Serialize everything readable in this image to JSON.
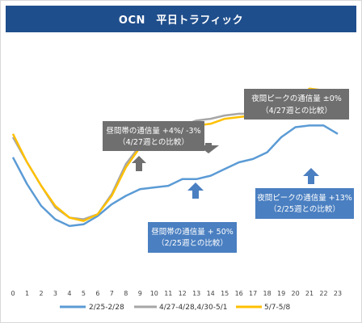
{
  "chart_data": {
    "type": "line",
    "title": "OCN　平日トラフィック",
    "x": [
      0,
      1,
      2,
      3,
      4,
      5,
      6,
      7,
      8,
      9,
      10,
      11,
      12,
      13,
      14,
      15,
      16,
      17,
      18,
      19,
      20,
      21,
      22,
      23
    ],
    "series": [
      {
        "name": "2/25-2/28",
        "color": "#5b9bd5",
        "values": [
          70,
          54,
          41,
          33,
          29,
          30,
          35,
          42,
          47,
          51,
          52,
          53,
          57,
          57,
          59,
          63,
          67,
          69,
          73,
          82,
          88,
          89,
          89,
          84
        ]
      },
      {
        "name": "4/27-4/28,4/30-5/1",
        "color": "#a6a6a6",
        "values": [
          82,
          67,
          53,
          40,
          34,
          33,
          36,
          48,
          66,
          77,
          82,
          85,
          89,
          92,
          93,
          95,
          96,
          96,
          96,
          97,
          103,
          110,
          110,
          104
        ]
      },
      {
        "name": "5/7-5/8",
        "color": "#ffc000",
        "values": [
          84,
          67,
          53,
          41,
          34,
          32,
          36,
          47,
          64,
          76,
          81,
          83,
          86,
          89,
          90,
          93,
          94,
          95,
          95,
          96,
          104,
          111,
          110,
          104
        ]
      }
    ],
    "annotations": [
      {
        "text_line1": "夜間ピークの通信量 ±0%",
        "text_line2": "（4/27週との比較）",
        "box_color": "#6f6f6f"
      },
      {
        "text_line1": "昼間帯の通信量 +4%/ -3%",
        "text_line2": "（4/27週との比較）",
        "box_color": "#6f6f6f"
      },
      {
        "text_line1": "夜間ピークの通信量 +13%",
        "text_line2": "（2/25週との比較）",
        "box_color": "#4a7fc1"
      },
      {
        "text_line1": "昼間帯の通信量 + 50%",
        "text_line2": "（2/25週との比較）",
        "box_color": "#4a7fc1"
      }
    ],
    "ylim": [
      0,
      135
    ],
    "grid": false,
    "legend_position": "bottom"
  }
}
